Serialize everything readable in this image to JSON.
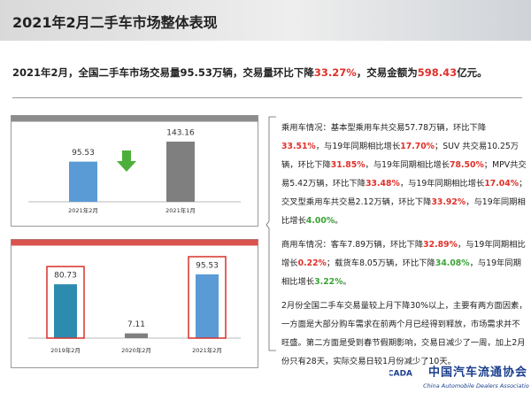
{
  "header": {
    "title": "2021年2月二手车市场整体表现"
  },
  "summary": [
    {
      "text": "2021年2月，全国二手车市场交易量95.53万辆，交易量环比下降"
    },
    {
      "text": "33.27%",
      "color": "#e0302a"
    },
    {
      "text": "，交易金额为"
    },
    {
      "text": "598.43",
      "color": "#e0302a"
    },
    {
      "text": "亿元。"
    }
  ],
  "chart_data": [
    {
      "type": "bar",
      "categories": [
        "2021年2月",
        "2021年1月"
      ],
      "values": [
        95.53,
        143.16
      ],
      "colors": [
        "#5b9bd5",
        "#7f7f7f"
      ]
    },
    {
      "type": "bar",
      "categories": [
        "2019年2月",
        "2020年2月",
        "2021年2月"
      ],
      "values": [
        80.73,
        7.11,
        95.53
      ],
      "colors": [
        "#2e8bb0",
        "#7f7f7f",
        "#5b9bd5"
      ]
    }
  ],
  "paragraphs": [
    [
      {
        "text": "乘用车情况：基本型乘用车共交易57.78万辆，环比下降"
      },
      {
        "text": "33.51%",
        "color": "#e0302a"
      },
      {
        "text": "，与19年同期相比增长"
      },
      {
        "text": "17.70%",
        "color": "#e0302a"
      },
      {
        "text": "；SUV 共交易10.25万辆，环比下降"
      },
      {
        "text": "31.85%",
        "color": "#e0302a"
      },
      {
        "text": "，与19年同期相比增长"
      },
      {
        "text": "78.50%",
        "color": "#e0302a"
      },
      {
        "text": "；MPV共交易5.42万辆，环比下降"
      },
      {
        "text": "33.48%",
        "color": "#e0302a"
      },
      {
        "text": "，与19年同期相比增长"
      },
      {
        "text": "17.04%",
        "color": "#e0302a"
      },
      {
        "text": "；交叉型乘用车共交易2.12万辆，环比下降"
      },
      {
        "text": "33.92%",
        "color": "#e0302a"
      },
      {
        "text": "，与19年同期相比增长"
      },
      {
        "text": "4.00%",
        "color": "#3aa335"
      },
      {
        "text": "。"
      }
    ],
    [
      {
        "text": "商用车情况：客车7.89万辆，环比下降"
      },
      {
        "text": "32.89%",
        "color": "#e0302a"
      },
      {
        "text": "，与19年同期相比增长"
      },
      {
        "text": "0.22%",
        "color": "#e0302a"
      },
      {
        "text": "；载货车8.05万辆，环比下降"
      },
      {
        "text": "34.08%",
        "color": "#3aa335"
      },
      {
        "text": "，与19年同期相比增长"
      },
      {
        "text": "3.22%",
        "color": "#3aa335"
      },
      {
        "text": "。"
      }
    ],
    [
      {
        "text": "2月份全国二手车交易量较上月下降30%以上，主要有两方面因素，一方面是大部分购车需求在前两个月已经得到释放，市场需求并不旺盛。第二方面是受到春节假期影响，交易日减少了一周，加上2月份只有28天，实际交易日较1月份减少了10天。"
      }
    ]
  ],
  "logo": {
    "abbr": "CADA",
    "name": "中国汽车流通协会",
    "english": "China Automobile Dealers Association"
  }
}
